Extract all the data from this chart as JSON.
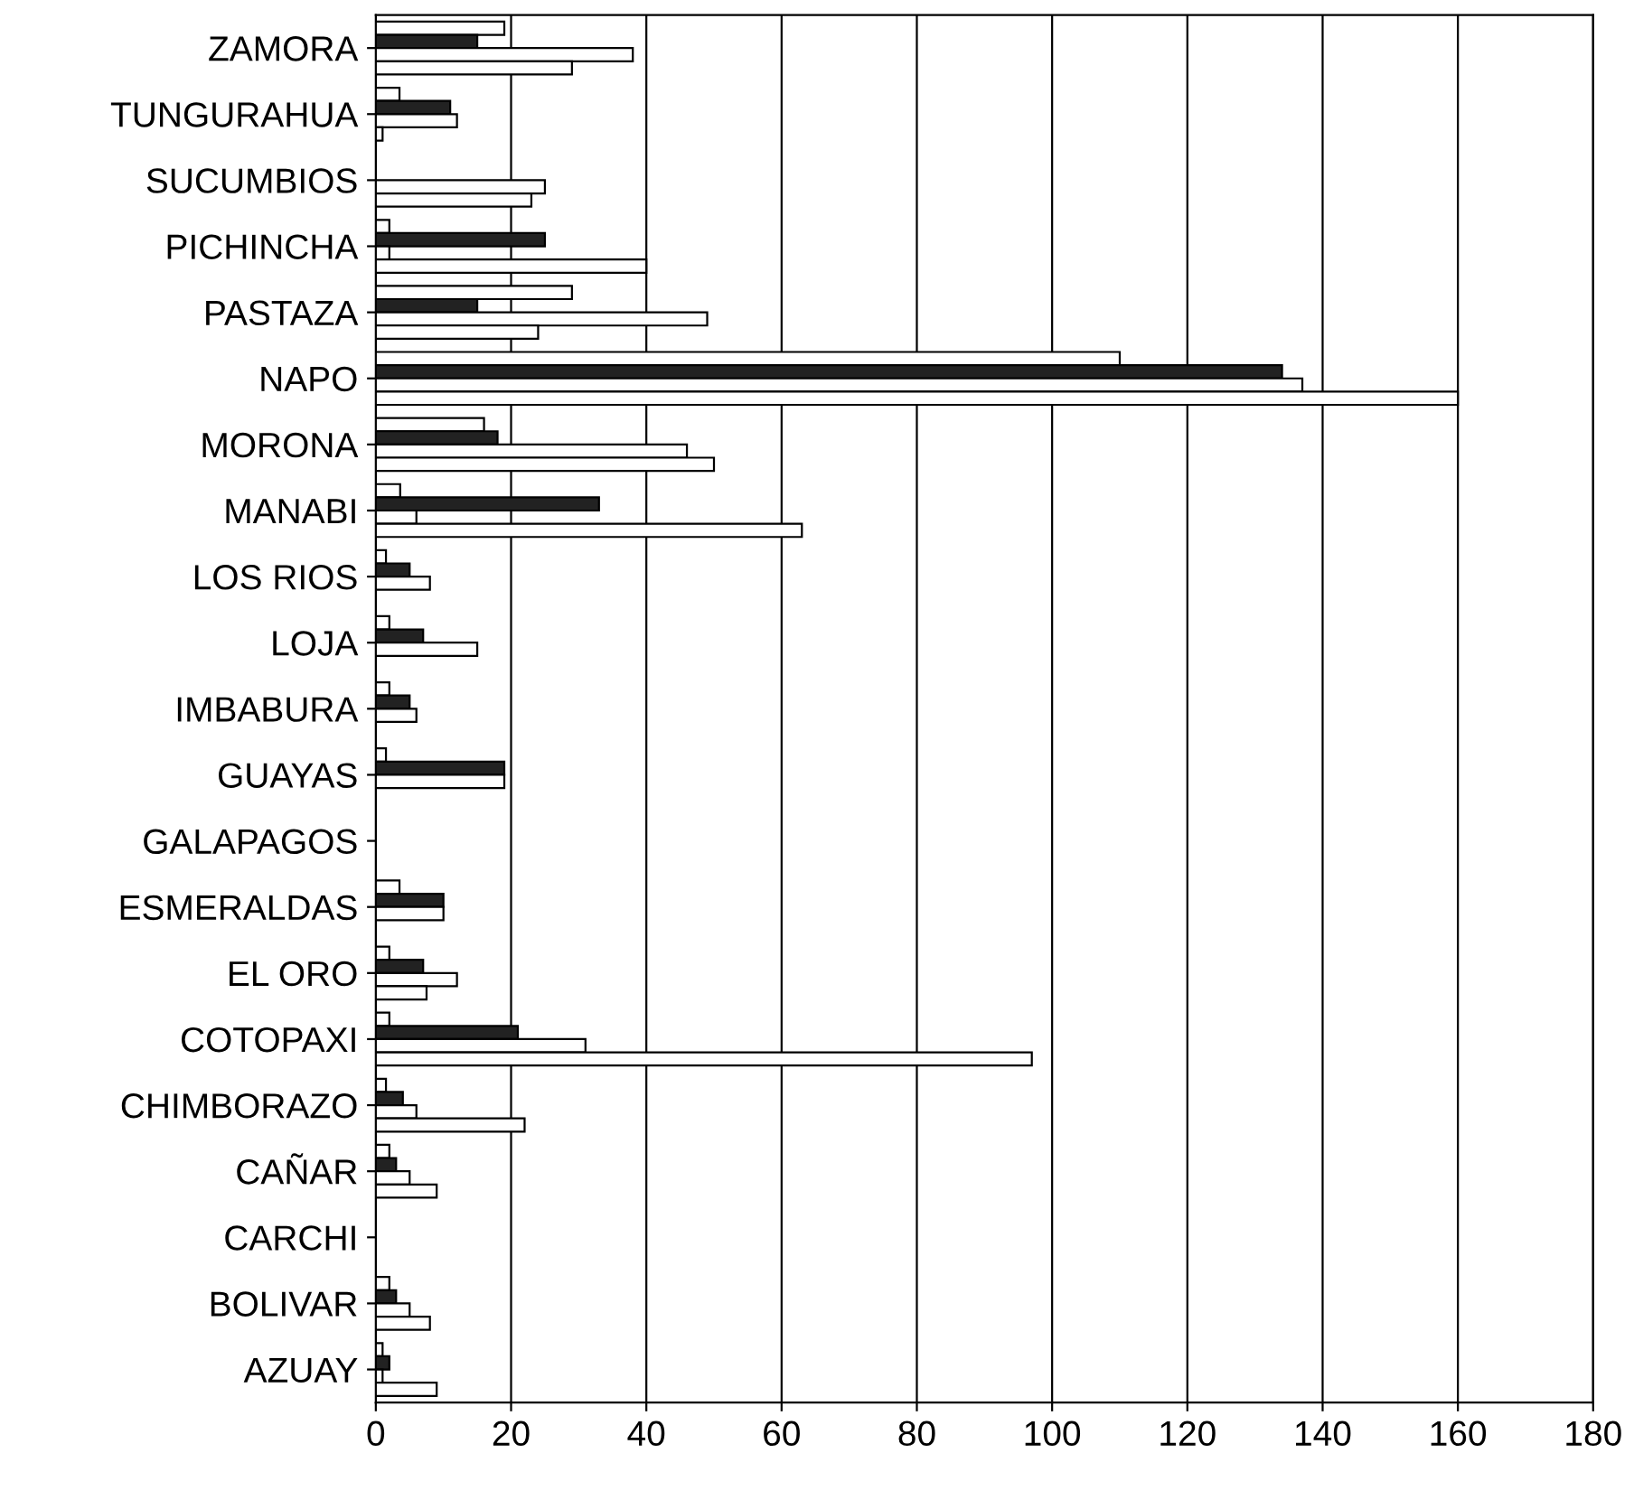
{
  "chart_data": {
    "type": "bar",
    "orientation": "horizontal",
    "categories": [
      "ZAMORA",
      "TUNGURAHUA",
      "SUCUMBIOS",
      "PICHINCHA",
      "PASTAZA",
      "NAPO",
      "MORONA",
      "MANABI",
      "LOS RIOS",
      "LOJA",
      "IMBABURA",
      "GUAYAS",
      "GALAPAGOS",
      "ESMERALDAS",
      "EL ORO",
      "COTOPAXI",
      "CHIMBORAZO",
      "CAÑAR",
      "CARCHI",
      "BOLIVAR",
      "AZUAY"
    ],
    "series": [
      {
        "color": "#ffffff",
        "values": [
          19,
          3.5,
          0,
          2,
          29,
          110,
          16,
          3.6,
          1.5,
          2,
          2,
          1.5,
          0,
          3.5,
          2,
          2,
          1.5,
          2,
          0,
          2,
          1
        ]
      },
      {
        "color": "#222222",
        "values": [
          15,
          11,
          0,
          25,
          15,
          134,
          18,
          33,
          5,
          7,
          5,
          19,
          0,
          10,
          7,
          21,
          4,
          3,
          0,
          3,
          2
        ]
      },
      {
        "color": "#ffffff",
        "values": [
          38,
          12,
          25,
          2,
          49,
          137,
          46,
          6,
          8,
          15,
          6,
          19,
          0,
          10,
          12,
          31,
          6,
          5,
          0,
          5,
          1
        ]
      },
      {
        "color": "#ffffff",
        "values": [
          29,
          1,
          23,
          40,
          24,
          160,
          50,
          63,
          0,
          0,
          0,
          0,
          0,
          0,
          7.5,
          97,
          22,
          9,
          0,
          8,
          9
        ]
      }
    ],
    "xlim": [
      0,
      180
    ],
    "xticks": [
      0,
      20,
      40,
      60,
      80,
      100,
      120,
      140,
      160,
      180
    ],
    "grid": "x",
    "legend": false
  }
}
